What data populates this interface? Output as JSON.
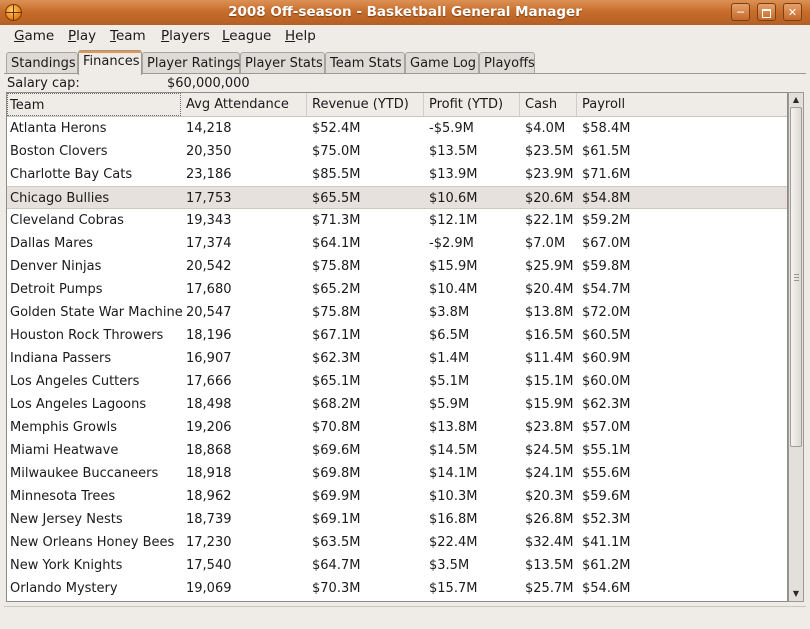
{
  "window": {
    "title": "2008 Off-season - Basketball General Manager"
  },
  "menu": [
    "Game",
    "Play",
    "Team",
    "Players",
    "League",
    "Help"
  ],
  "tabs": [
    "Standings",
    "Finances",
    "Player Ratings",
    "Player Stats",
    "Team Stats",
    "Game Log",
    "Playoffs"
  ],
  "active_tab": "Finances",
  "salary": {
    "label": "Salary cap:",
    "value": "$60,000,000"
  },
  "table": {
    "columns": [
      "Team",
      "Avg Attendance",
      "Revenue (YTD)",
      "Profit (YTD)",
      "Cash",
      "Payroll"
    ],
    "selected_row": "Chicago Bullies",
    "rows": [
      [
        "Atlanta Herons",
        "14,218",
        "$52.4M",
        "-$5.9M",
        "$4.0M",
        "$58.4M"
      ],
      [
        "Boston Clovers",
        "20,350",
        "$75.0M",
        "$13.5M",
        "$23.5M",
        "$61.5M"
      ],
      [
        "Charlotte Bay Cats",
        "23,186",
        "$85.5M",
        "$13.9M",
        "$23.9M",
        "$71.6M"
      ],
      [
        "Chicago Bullies",
        "17,753",
        "$65.5M",
        "$10.6M",
        "$20.6M",
        "$54.8M"
      ],
      [
        "Cleveland Cobras",
        "19,343",
        "$71.3M",
        "$12.1M",
        "$22.1M",
        "$59.2M"
      ],
      [
        "Dallas Mares",
        "17,374",
        "$64.1M",
        "-$2.9M",
        "$7.0M",
        "$67.0M"
      ],
      [
        "Denver Ninjas",
        "20,542",
        "$75.8M",
        "$15.9M",
        "$25.9M",
        "$59.8M"
      ],
      [
        "Detroit Pumps",
        "17,680",
        "$65.2M",
        "$10.4M",
        "$20.4M",
        "$54.7M"
      ],
      [
        "Golden State War Machine",
        "20,547",
        "$75.8M",
        "$3.8M",
        "$13.8M",
        "$72.0M"
      ],
      [
        "Houston Rock Throwers",
        "18,196",
        "$67.1M",
        "$6.5M",
        "$16.5M",
        "$60.5M"
      ],
      [
        "Indiana Passers",
        "16,907",
        "$62.3M",
        "$1.4M",
        "$11.4M",
        "$60.9M"
      ],
      [
        "Los Angeles Cutters",
        "17,666",
        "$65.1M",
        "$5.1M",
        "$15.1M",
        "$60.0M"
      ],
      [
        "Los Angeles Lagoons",
        "18,498",
        "$68.2M",
        "$5.9M",
        "$15.9M",
        "$62.3M"
      ],
      [
        "Memphis Growls",
        "19,206",
        "$70.8M",
        "$13.8M",
        "$23.8M",
        "$57.0M"
      ],
      [
        "Miami Heatwave",
        "18,868",
        "$69.6M",
        "$14.5M",
        "$24.5M",
        "$55.1M"
      ],
      [
        "Milwaukee Buccaneers",
        "18,918",
        "$69.8M",
        "$14.1M",
        "$24.1M",
        "$55.6M"
      ],
      [
        "Minnesota Trees",
        "18,962",
        "$69.9M",
        "$10.3M",
        "$20.3M",
        "$59.6M"
      ],
      [
        "New Jersey Nests",
        "18,739",
        "$69.1M",
        "$16.8M",
        "$26.8M",
        "$52.3M"
      ],
      [
        "New Orleans Honey Bees",
        "17,230",
        "$63.5M",
        "$22.4M",
        "$32.4M",
        "$41.1M"
      ],
      [
        "New York Knights",
        "17,540",
        "$64.7M",
        "$3.5M",
        "$13.5M",
        "$61.2M"
      ],
      [
        "Orlando Mystery",
        "19,069",
        "$70.3M",
        "$15.7M",
        "$25.7M",
        "$54.6M"
      ]
    ]
  },
  "colors": {
    "titlebar": "#c86e2c",
    "active_tab_accent": "#e6954a",
    "selected_row": "#e6e1dc"
  },
  "icons": {
    "app": "basketball-icon",
    "minimize": "minimize-icon",
    "maximize": "maximize-icon",
    "close": "close-icon"
  }
}
